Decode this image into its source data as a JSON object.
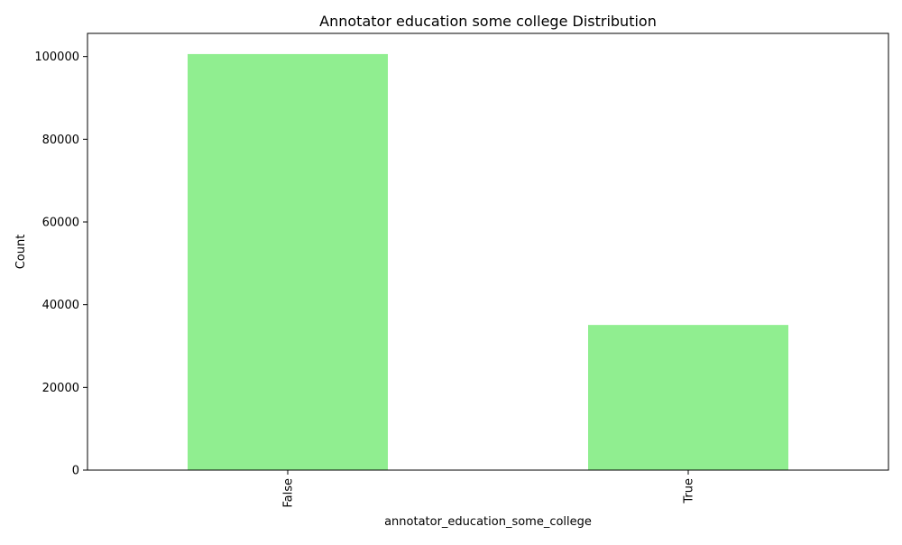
{
  "chart_data": {
    "type": "bar",
    "title": "Annotator education some college Distribution",
    "xlabel": "annotator_education_some_college",
    "ylabel": "Count",
    "categories": [
      "False",
      "True"
    ],
    "values": [
      100600,
      35100
    ],
    "ylim": [
      0,
      105600
    ],
    "yticks": [
      0,
      20000,
      40000,
      60000,
      80000,
      100000
    ],
    "bar_color": "#90ee90",
    "grid": false,
    "legend": "none"
  }
}
